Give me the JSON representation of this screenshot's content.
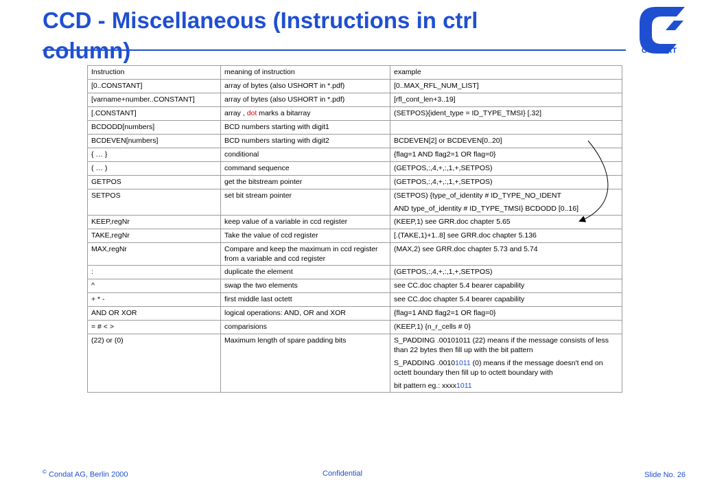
{
  "slide": {
    "title": "CCD - Miscellaneous (Instructions in ctrl column)",
    "logo_text": "CONDAT",
    "footer": {
      "copyright_symbol": "©",
      "left": "Condat AG, Berlin 2000",
      "center": "Confidential",
      "right": "Slide No.  26"
    }
  },
  "colors": {
    "accent": "#1f4fd1",
    "highlight_red": "#e00000",
    "border": "#9a9a9a"
  },
  "table": {
    "headers": [
      "Instruction",
      "meaning of instruction",
      "example"
    ],
    "rows": [
      {
        "instruction": "[0..CONSTANT]",
        "meaning": "array of bytes (also USHORT in *.pdf)",
        "example": [
          "[0..MAX_RFL_NUM_LIST]"
        ]
      },
      {
        "instruction": "[varname+number..CONSTANT]",
        "meaning": "array of bytes (also USHORT in *.pdf)",
        "example": [
          "[rfl_cont_len+3..19]"
        ]
      },
      {
        "instruction": "[.CONSTANT]",
        "meaning_pre": "array , ",
        "meaning_red": "dot",
        "meaning_post": " marks a bitarray",
        "example": [
          "(SETPOS){ident_type = ID_TYPE_TMSI} [.32]"
        ]
      },
      {
        "instruction": "BCDODD[numbers]",
        "meaning": "BCD numbers starting with digit1",
        "example": [
          ""
        ]
      },
      {
        "instruction": "BCDEVEN[numbers]",
        "meaning": "BCD numbers starting with digit2",
        "example": [
          "BCDEVEN[2]   or   BCDEVEN[0..20]"
        ]
      },
      {
        "instruction": "{ … }",
        "meaning": "conditional",
        "example": [
          "{flag=1 AND flag2=1 OR flag=0}"
        ]
      },
      {
        "instruction": "( … )",
        "meaning": "command sequence",
        "example": [
          "(GETPOS,:,4,+,:,1,+,SETPOS)"
        ]
      },
      {
        "instruction": "GETPOS",
        "meaning": "get the bitstream pointer",
        "example": [
          "(GETPOS,:,4,+,:,1,+,SETPOS)"
        ]
      },
      {
        "instruction": "SETPOS",
        "meaning": "set bit stream pointer",
        "example": [
          "(SETPOS) {type_of_identity # ID_TYPE_NO_IDENT",
          "AND type_of_identity # ID_TYPE_TMSI}  BCDODD [0..16]"
        ]
      },
      {
        "instruction": "KEEP,regNr",
        "meaning": "keep value of a variable in ccd register",
        "example": [
          "(KEEP,1)                  see GRR.doc chapter 5.65"
        ]
      },
      {
        "instruction": "TAKE,regNr",
        "meaning": "Take the value of ccd register",
        "example": [
          "[.(TAKE,1)+1..8]    see GRR.doc chapter 5.136"
        ]
      },
      {
        "instruction": "MAX,regNr",
        "meaning": "Compare and keep the maximum in ccd register from a variable and ccd register",
        "example": [
          "(MAX,2) see GRR.doc chapter 5.73 and 5.74"
        ]
      },
      {
        "instruction": ":",
        "meaning": "duplicate the element",
        "example": [
          "(GETPOS,:,4,+,:,1,+,SETPOS)"
        ]
      },
      {
        "instruction": "^",
        "meaning": "swap the two elements",
        "example": [
          "see CC.doc  chapter 5.4 bearer capability"
        ]
      },
      {
        "instruction": "+  *  -",
        "meaning": "first middle last octett",
        "example": [
          "see CC.doc  chapter 5.4 bearer capability"
        ]
      },
      {
        "instruction": "AND OR XOR",
        "meaning": "logical operations: AND, OR and XOR",
        "example": [
          "{flag=1 AND flag2=1 OR flag=0}"
        ]
      },
      {
        "instruction": "= # < >",
        "meaning": "comparisions",
        "example": [
          "(KEEP,1) {n_r_cells # 0}"
        ]
      }
    ],
    "last_row": {
      "instruction": "(22) or (0)",
      "meaning": "Maximum length of spare padding bits",
      "example_1": "S_PADDING  .00101011 (22)   means if the message consists of less than 22 bytes then fill up with the bit pattern",
      "example_2_pre": "S_PADDING   .0010",
      "example_2_blue": "1011",
      "example_2_post": " (0)  means  if  the  message  doesn't end on octett boundary then fill up to octett boundary with",
      "example_3_pre": "bit pattern eg.:   xxxx",
      "example_3_blue": "1011"
    }
  }
}
